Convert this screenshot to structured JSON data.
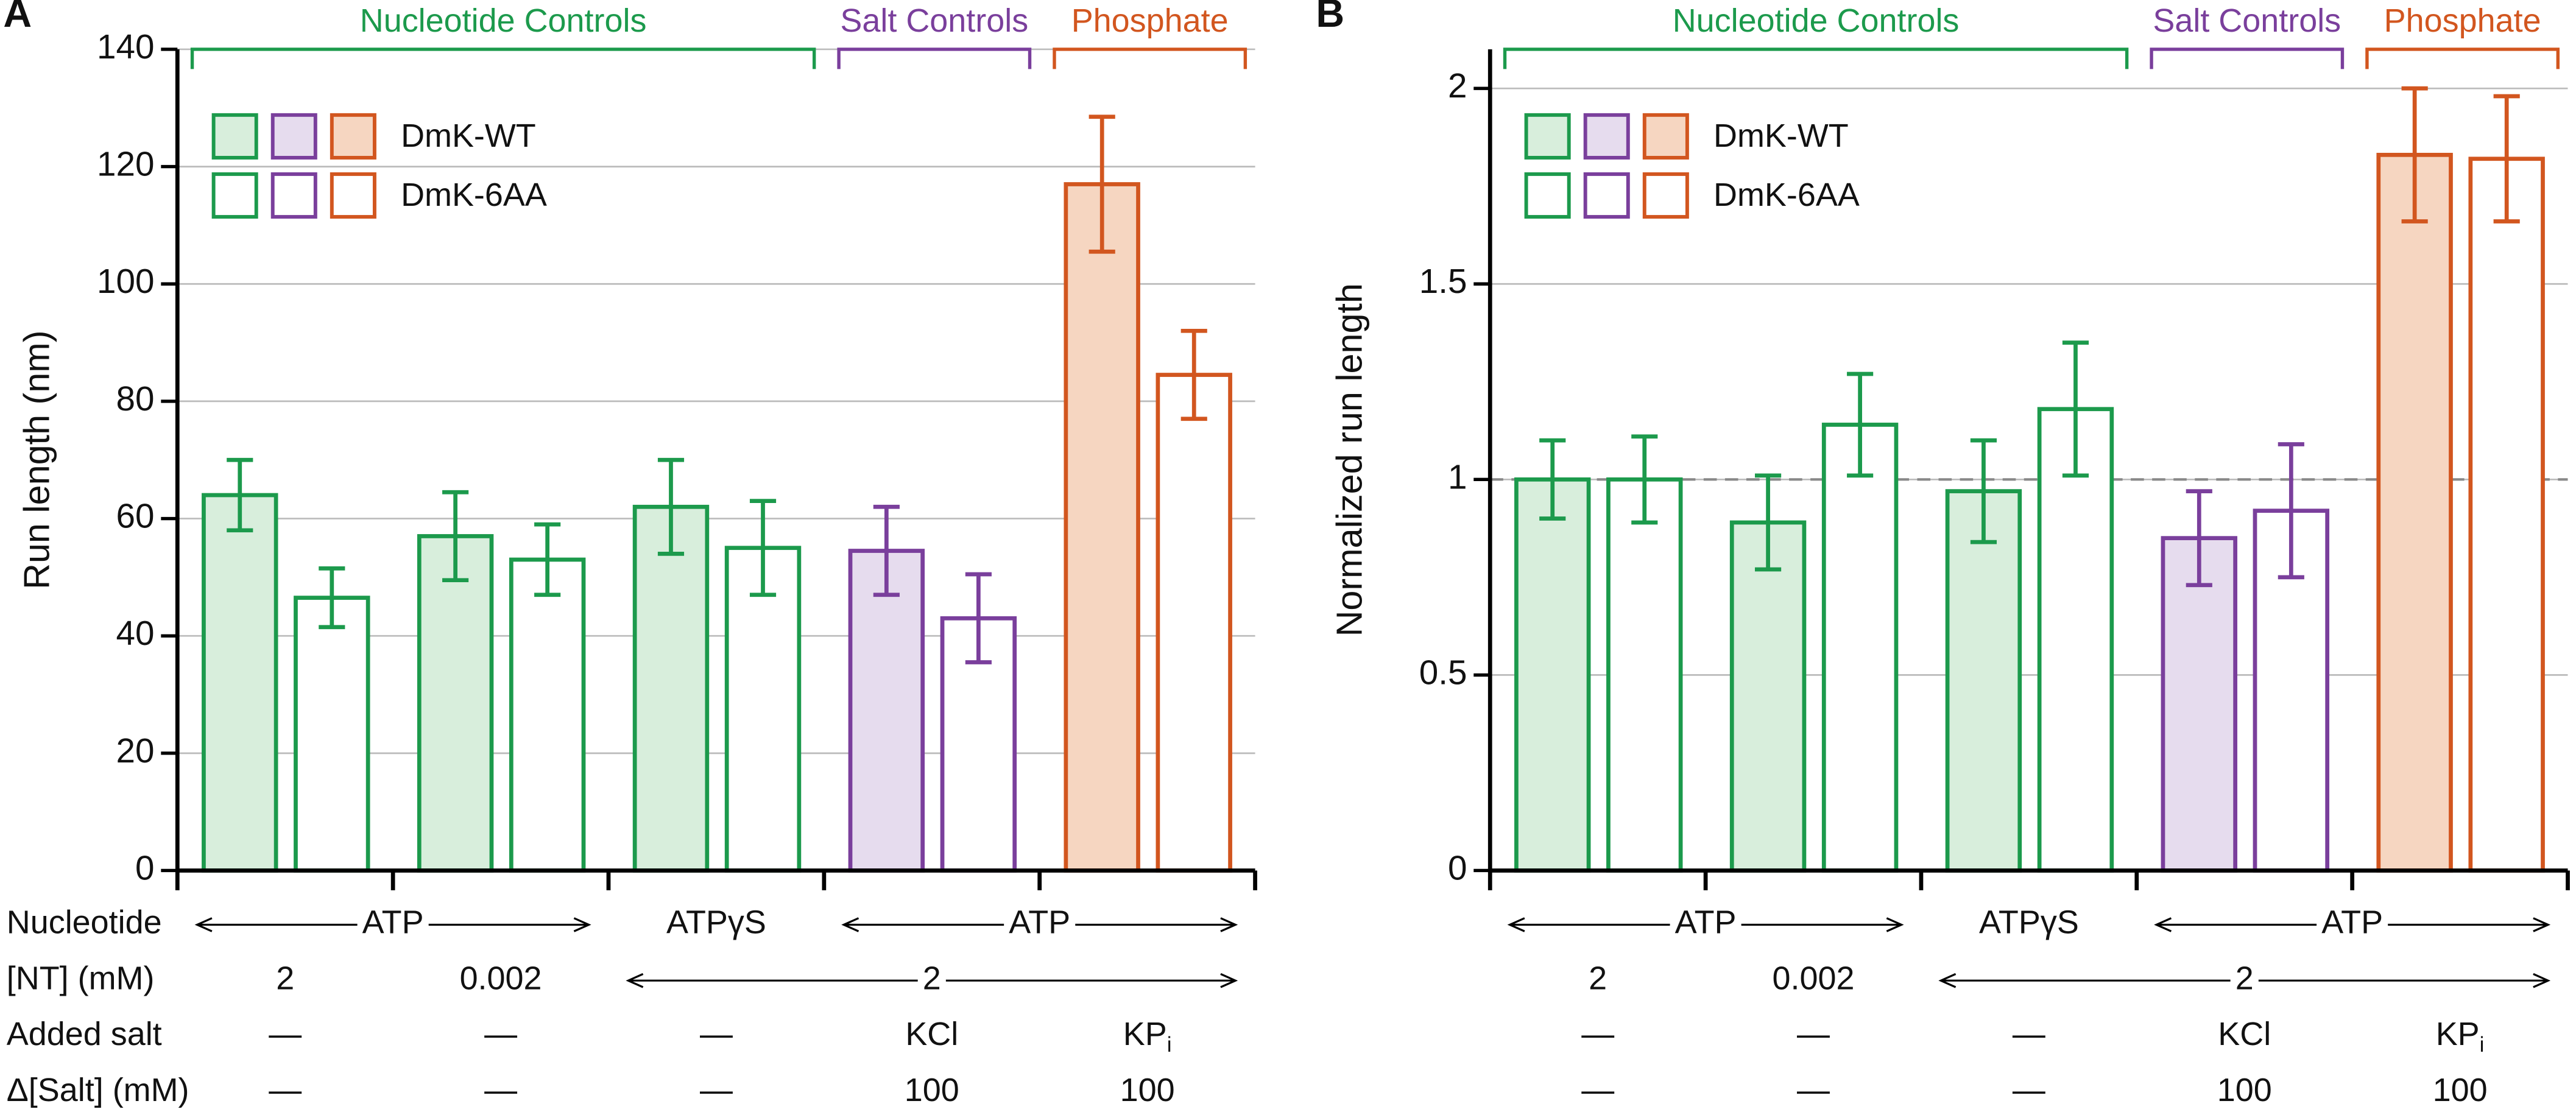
{
  "chart_data": [
    {
      "type": "bar",
      "panel": "A",
      "ylabel": "Run length (nm)",
      "ylim": [
        0,
        140
      ],
      "yticks": [
        0,
        20,
        40,
        60,
        80,
        100,
        120,
        140
      ],
      "grid": true,
      "headers": [
        {
          "text": "Nucleotide Controls",
          "color": "#1c9a4c"
        },
        {
          "text": "Salt Controls",
          "color": "#7a3f9c"
        },
        {
          "text": "Phosphate",
          "color": "#d2561f"
        }
      ],
      "group_colors": [
        "#1c9a4c",
        "#1c9a4c",
        "#1c9a4c",
        "#7a3f9c",
        "#d2561f"
      ],
      "group_fills": [
        "#d8eedc",
        "#d8eedc",
        "#d8eedc",
        "#e6dcee",
        "#f6d6c1"
      ],
      "series": [
        {
          "name": "DmK-WT",
          "filled": true,
          "values": [
            64,
            57,
            62,
            54.5,
            117
          ],
          "errors": [
            6,
            7.5,
            8,
            7.5,
            11.5
          ]
        },
        {
          "name": "DmK-6AA",
          "filled": false,
          "values": [
            46.5,
            53,
            55,
            43,
            84.5
          ],
          "errors": [
            5,
            6,
            8,
            7.5,
            7.5
          ]
        }
      ],
      "rows": [
        {
          "label": "Nucleotide",
          "cells": [
            "ATP",
            null,
            "ATPγS",
            "ATP",
            null
          ]
        },
        {
          "label": "[NT] (mM)",
          "cells": [
            "2",
            "0.002",
            "2",
            null,
            null
          ]
        },
        {
          "label": "Added salt",
          "cells": [
            "—",
            "—",
            "—",
            "KCl",
            {
              "text": "KP",
              "sub": "i"
            }
          ]
        },
        {
          "label": "Δ[Salt] (mM)",
          "cells": [
            "—",
            "—",
            "—",
            "100",
            "100"
          ]
        }
      ]
    },
    {
      "type": "bar",
      "panel": "B",
      "ylabel": "Normalized run length",
      "ylim": [
        0,
        2.1
      ],
      "yticks": [
        0,
        0.5,
        1,
        1.5,
        2
      ],
      "grid": true,
      "hline": 1,
      "headers": [
        {
          "text": "Nucleotide Controls",
          "color": "#1c9a4c"
        },
        {
          "text": "Salt Controls",
          "color": "#7a3f9c"
        },
        {
          "text": "Phosphate",
          "color": "#d2561f"
        }
      ],
      "group_colors": [
        "#1c9a4c",
        "#1c9a4c",
        "#1c9a4c",
        "#7a3f9c",
        "#d2561f"
      ],
      "group_fills": [
        "#d8eedc",
        "#d8eedc",
        "#d8eedc",
        "#e6dcee",
        "#f6d6c1"
      ],
      "series": [
        {
          "name": "DmK-WT",
          "filled": true,
          "values": [
            1.0,
            0.89,
            0.97,
            0.85,
            1.83
          ],
          "errors": [
            0.1,
            0.12,
            0.13,
            0.12,
            0.17
          ]
        },
        {
          "name": "DmK-6AA",
          "filled": false,
          "values": [
            1.0,
            1.14,
            1.18,
            0.92,
            1.82
          ],
          "errors": [
            0.11,
            0.13,
            0.17,
            0.17,
            0.16
          ]
        }
      ],
      "rows": [
        {
          "cells": [
            "ATP",
            null,
            "ATPγS",
            "ATP",
            null
          ]
        },
        {
          "cells": [
            "2",
            "0.002",
            "2",
            null,
            null
          ]
        },
        {
          "cells": [
            "—",
            "—",
            "—",
            "KCl",
            {
              "text": "KP",
              "sub": "i"
            }
          ]
        },
        {
          "cells": [
            "—",
            "—",
            "—",
            "100",
            "100"
          ]
        }
      ]
    }
  ]
}
